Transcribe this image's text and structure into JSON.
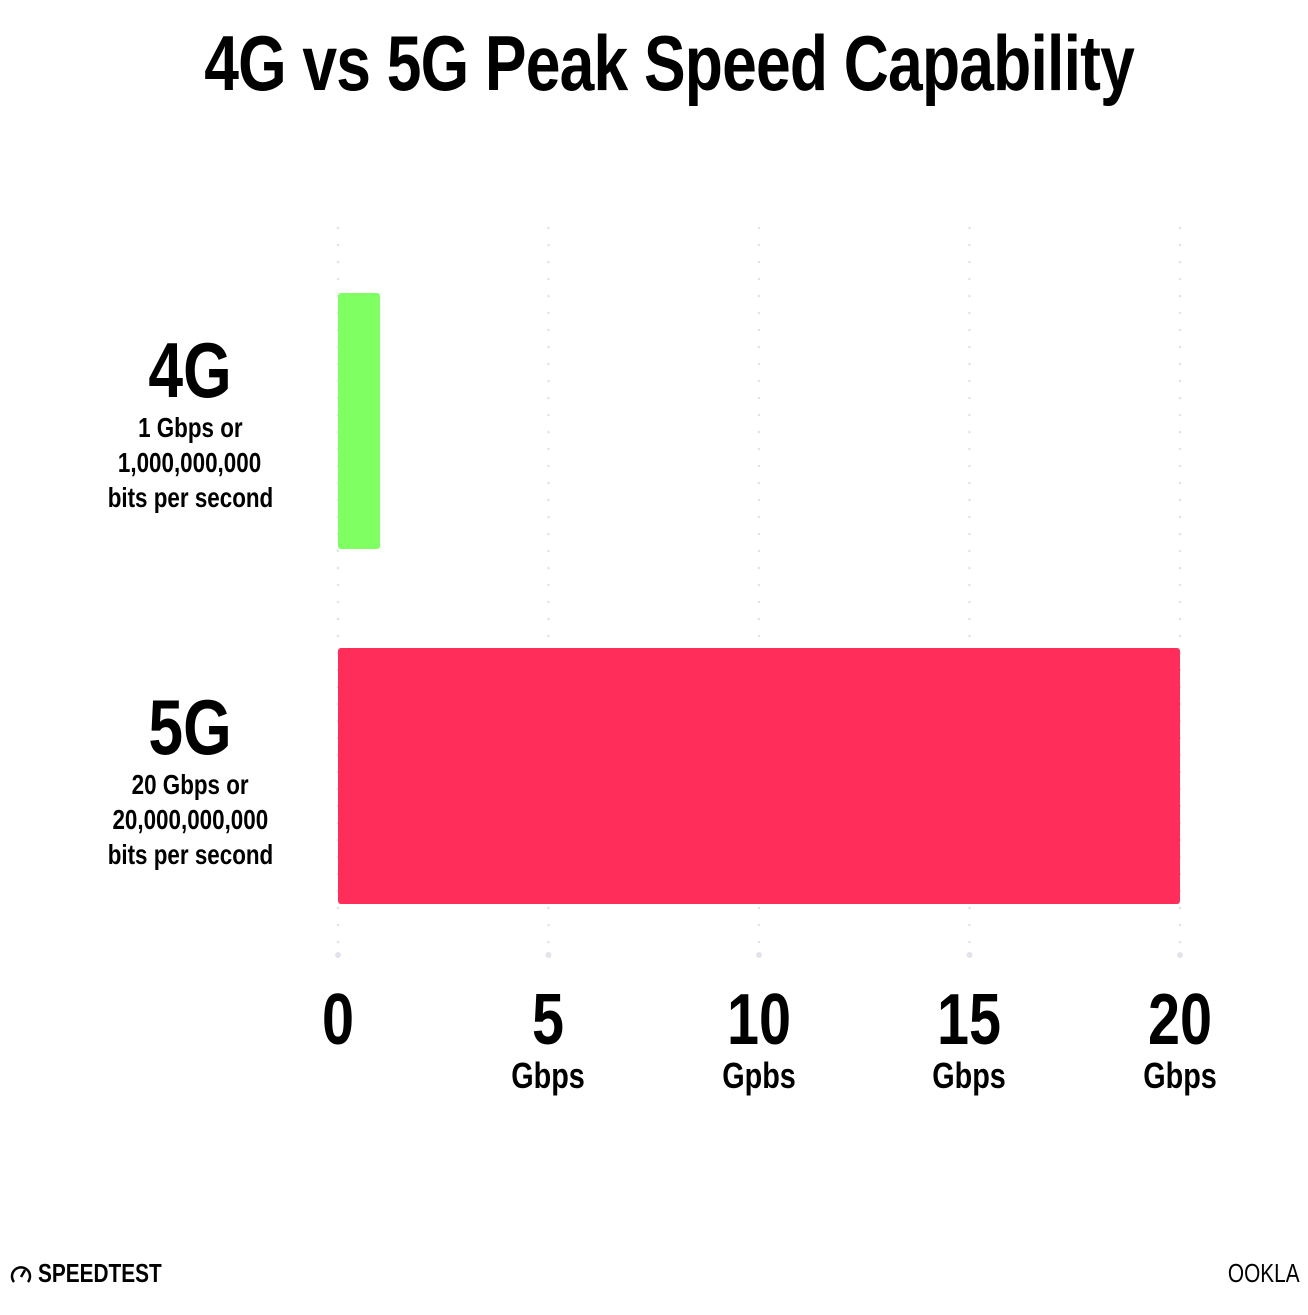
{
  "chart_data": {
    "type": "bar",
    "orientation": "horizontal",
    "title": "4G vs 5G Peak Speed Capability",
    "categories": [
      "4G",
      "5G"
    ],
    "category_sublabels": [
      [
        "1 Gbps or",
        "1,000,000,000",
        "bits per second"
      ],
      [
        "20 Gbps or",
        "20,000,000,000",
        "bits per second"
      ]
    ],
    "values": [
      1,
      20
    ],
    "colors": [
      "#80ff63",
      "#ff2d5a"
    ],
    "xlim": [
      0,
      20
    ],
    "xticks": [
      0,
      5,
      10,
      15,
      20
    ],
    "xtick_labels": [
      "0",
      "5",
      "10",
      "15",
      "20"
    ],
    "xtick_units": [
      "",
      "Gbps",
      "Gpbs",
      "Gbps",
      "Gbps"
    ],
    "grid": "vertical dotted",
    "grid_color": "#e3e3ef"
  },
  "footer": {
    "left_logo": "SPEEDTEST",
    "right_logo": "OOKLA"
  }
}
